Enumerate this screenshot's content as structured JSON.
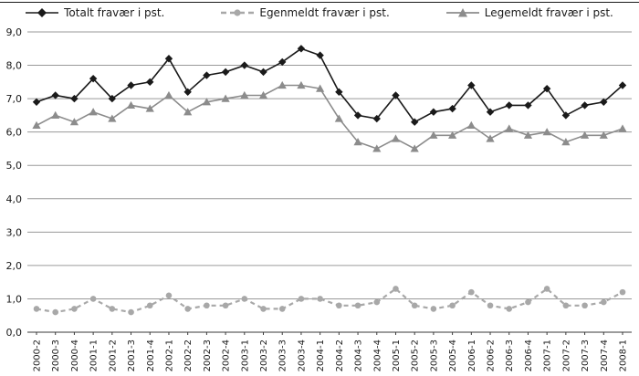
{
  "chart_data": {
    "type": "line",
    "categories": [
      "2000-2",
      "2000-3",
      "2000-4",
      "2001-1",
      "2001-2",
      "2001-3",
      "2001-4",
      "2002-1",
      "2002-2",
      "2002-3",
      "2002-4",
      "2003-1",
      "2003-2",
      "2003-3",
      "2003-4",
      "2004-1",
      "2004-2",
      "2004-3",
      "2004-4",
      "2005-1",
      "2005-2",
      "2005-3",
      "2005-4",
      "2006-1",
      "2006-2",
      "2006-3",
      "2006-4",
      "2007-1",
      "2007-2",
      "2007-3",
      "2007-4",
      "2008-1"
    ],
    "series": [
      {
        "name": "Totalt fravær i pst.",
        "marker": "diamond",
        "color": "#1a1a1a",
        "line_style": "solid",
        "values": [
          6.9,
          7.1,
          7.0,
          7.6,
          7.0,
          7.4,
          7.5,
          8.2,
          7.2,
          7.7,
          7.8,
          8.0,
          7.8,
          8.1,
          8.5,
          8.3,
          7.2,
          6.5,
          6.4,
          7.1,
          6.3,
          6.6,
          6.7,
          7.4,
          6.6,
          6.8,
          6.8,
          7.3,
          6.5,
          6.8,
          6.9,
          7.4
        ]
      },
      {
        "name": "Egenmeldt fravær i pst.",
        "marker": "circle",
        "color": "#a8a8a8",
        "line_style": "dashed",
        "values": [
          0.7,
          0.6,
          0.7,
          1.0,
          0.7,
          0.6,
          0.8,
          1.1,
          0.7,
          0.8,
          0.8,
          1.0,
          0.7,
          0.7,
          1.0,
          1.0,
          0.8,
          0.8,
          0.9,
          1.3,
          0.8,
          0.7,
          0.8,
          1.2,
          0.8,
          0.7,
          0.9,
          1.3,
          0.8,
          0.8,
          0.9,
          1.2
        ]
      },
      {
        "name": "Legemeldt fravær i pst.",
        "marker": "triangle",
        "color": "#8c8c8c",
        "line_style": "solid",
        "values": [
          6.2,
          6.5,
          6.3,
          6.6,
          6.4,
          6.8,
          6.7,
          7.1,
          6.6,
          6.9,
          7.0,
          7.1,
          7.1,
          7.4,
          7.4,
          7.3,
          6.4,
          5.7,
          5.5,
          5.8,
          5.5,
          5.9,
          5.9,
          6.2,
          5.8,
          6.1,
          5.9,
          6.0,
          5.7,
          5.9,
          5.9,
          6.1
        ]
      }
    ],
    "ylim": [
      0,
      9
    ],
    "y_tick_labels": [
      "0,0",
      "1,0",
      "2,0",
      "3,0",
      "4,0",
      "5,0",
      "6,0",
      "7,0",
      "8,0",
      "9,0"
    ],
    "grid": "horizontal",
    "legend_position": "top",
    "xlabel": "",
    "ylabel": ""
  }
}
